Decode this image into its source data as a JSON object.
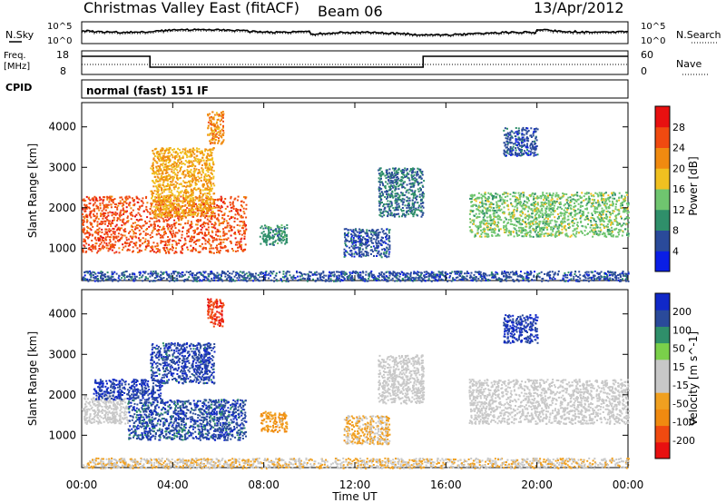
{
  "header": {
    "title": "Christmas Valley East (fitACF)",
    "beam": "Beam 06",
    "date": "13/Apr/2012"
  },
  "strip1": {
    "left_label": "N.Sky",
    "right_label": "N.Search",
    "left_ticks": [
      "10^5",
      "10^0"
    ],
    "right_ticks": [
      "10^5",
      "10^0"
    ]
  },
  "strip2": {
    "left_label_line1": "Freq.",
    "left_label_line2": "[MHz]",
    "left_ticks": [
      "18",
      "8"
    ],
    "right_label": "Nave",
    "right_ticks": [
      "60",
      "0"
    ]
  },
  "cpid": {
    "label": "CPID",
    "mode": "normal (fast) 151 IF"
  },
  "x_axis": {
    "label": "Time UT",
    "ticks": [
      "00:00",
      "04:00",
      "08:00",
      "12:00",
      "16:00",
      "20:00",
      "00:00"
    ]
  },
  "colors": {
    "power_scale": [
      "#0a1ee6",
      "#2a4a9a",
      "#2f8f6a",
      "#6fc56f",
      "#f0c020",
      "#f08a10",
      "#f04a10",
      "#e81010"
    ],
    "velocity_scale": [
      "#e81010",
      "#f04a10",
      "#f08a10",
      "#f0a020",
      "#c8c8c8",
      "#c8c8c8",
      "#7ad04a",
      "#2f8f6a",
      "#2a4a9a",
      "#1028c8"
    ]
  },
  "chart_data": [
    {
      "type": "heatmap",
      "name": "power",
      "ylabel": "Slant Range [km]",
      "yticks": [
        1000,
        2000,
        3000,
        4000
      ],
      "ylim": [
        200,
        4600
      ],
      "xlim": [
        0,
        24
      ],
      "colorbar_label": "Power [dB]",
      "colorbar_ticks": [
        "28",
        "24",
        "20",
        "16",
        "12",
        "8",
        "4"
      ],
      "clim": [
        0,
        32
      ],
      "echo_regions": [
        {
          "t0": 0.0,
          "t1": 7.2,
          "r0": 900,
          "r1": 2300,
          "level": 26
        },
        {
          "t0": 3.0,
          "t1": 5.8,
          "r0": 1800,
          "r1": 3500,
          "level": 20
        },
        {
          "t0": 5.5,
          "t1": 6.2,
          "r0": 3600,
          "r1": 4400,
          "level": 22
        },
        {
          "t0": 7.8,
          "t1": 9.0,
          "r0": 1100,
          "r1": 1600,
          "level": 10
        },
        {
          "t0": 11.5,
          "t1": 13.5,
          "r0": 800,
          "r1": 1500,
          "level": 6
        },
        {
          "t0": 13.0,
          "t1": 15.0,
          "r0": 1800,
          "r1": 3000,
          "level": 8
        },
        {
          "t0": 17.0,
          "t1": 24.0,
          "r0": 1300,
          "r1": 2400,
          "level": 14
        },
        {
          "t0": 18.5,
          "t1": 20.0,
          "r0": 3300,
          "r1": 4000,
          "level": 6
        },
        {
          "t0": 0.0,
          "t1": 24.0,
          "r0": 200,
          "r1": 450,
          "level": 6
        }
      ]
    },
    {
      "type": "heatmap",
      "name": "velocity",
      "ylabel": "Slant Range [km]",
      "yticks": [
        1000,
        2000,
        3000,
        4000
      ],
      "ylim": [
        200,
        4600
      ],
      "xlim": [
        0,
        24
      ],
      "colorbar_label": "Velocity [m s^-1]",
      "colorbar_ticks": [
        "200",
        "100",
        "50",
        "15",
        "-15",
        "-50",
        "-100",
        "-200"
      ],
      "clim": [
        -250,
        250
      ],
      "echo_regions": [
        {
          "t0": 0.0,
          "t1": 2.0,
          "r0": 1300,
          "r1": 2000,
          "level": 0
        },
        {
          "t0": 0.5,
          "t1": 3.5,
          "r0": 1900,
          "r1": 2400,
          "level": 200
        },
        {
          "t0": 2.0,
          "t1": 7.2,
          "r0": 900,
          "r1": 1900,
          "level": 180
        },
        {
          "t0": 3.0,
          "t1": 5.8,
          "r0": 2300,
          "r1": 3300,
          "level": 190
        },
        {
          "t0": 5.5,
          "t1": 6.2,
          "r0": 3700,
          "r1": 4400,
          "level": -200
        },
        {
          "t0": 7.8,
          "t1": 9.0,
          "r0": 1100,
          "r1": 1600,
          "level": -90
        },
        {
          "t0": 11.5,
          "t1": 13.5,
          "r0": 800,
          "r1": 1500,
          "level": -60
        },
        {
          "t0": 13.0,
          "t1": 15.0,
          "r0": 1800,
          "r1": 3000,
          "level": 0
        },
        {
          "t0": 17.0,
          "t1": 24.0,
          "r0": 1300,
          "r1": 2400,
          "level": 0
        },
        {
          "t0": 18.5,
          "t1": 20.0,
          "r0": 3300,
          "r1": 4000,
          "level": 200
        },
        {
          "t0": 0.0,
          "t1": 24.0,
          "r0": 200,
          "r1": 450,
          "level": -40
        }
      ]
    }
  ]
}
